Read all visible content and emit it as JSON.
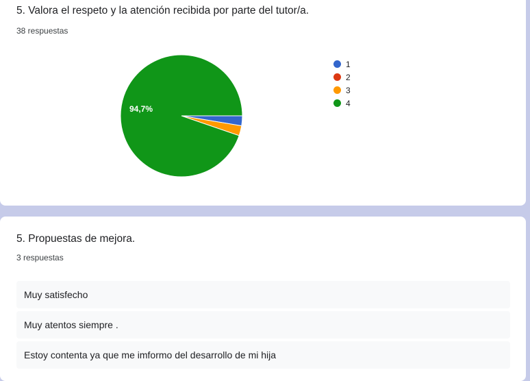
{
  "question1": {
    "title": "5. Valora el respeto y la atención recibida por parte del tutor/a.",
    "response_count": "38 respuestas"
  },
  "legend": {
    "items": [
      {
        "label": "1",
        "color": "#3366cc"
      },
      {
        "label": "2",
        "color": "#dc3912"
      },
      {
        "label": "3",
        "color": "#ff9900"
      },
      {
        "label": "4",
        "color": "#109618"
      }
    ]
  },
  "chart_data": {
    "type": "pie",
    "categories": [
      "1",
      "2",
      "3",
      "4"
    ],
    "values": [
      1,
      0,
      1,
      36
    ],
    "colors": [
      "#3366cc",
      "#dc3912",
      "#ff9900",
      "#109618"
    ],
    "slice_labels": [
      "",
      "",
      "",
      "94,7%"
    ],
    "legend_position": "right"
  },
  "question2": {
    "title": "5. Propuestas de mejora.",
    "response_count": "3 respuestas",
    "answers": [
      "Muy satisfecho",
      "Muy atentos siempre .",
      "Estoy contenta ya que me imformo del desarrollo de mi hija"
    ]
  }
}
